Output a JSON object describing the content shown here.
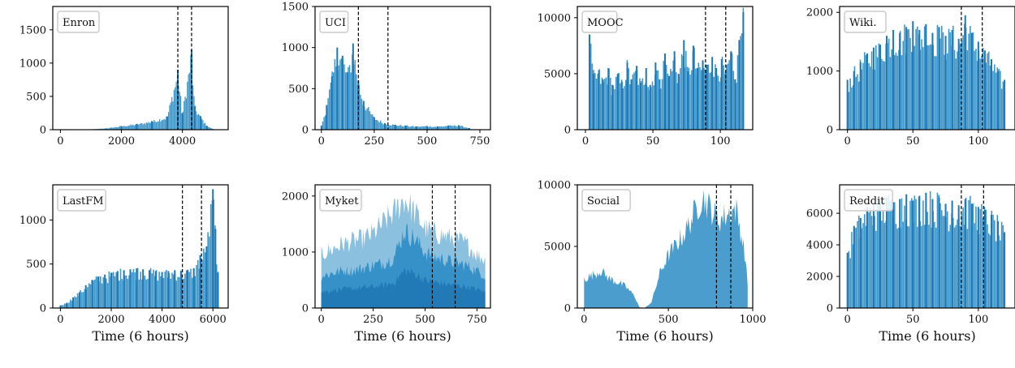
{
  "colors": {
    "bar": "#2b8cc4",
    "bar_dark": "#1f77b4",
    "bar_light": "#7fb9dc",
    "frame": "#000000",
    "legend_border": "#cccccc",
    "split_line": "#000000"
  },
  "chart_data": [
    {
      "type": "bar",
      "title": "",
      "legend_label": "Enron",
      "legend_placement": "top-left",
      "xlabel": "",
      "ylabel": "",
      "xlim": [
        -250,
        5500
      ],
      "ylim": [
        0,
        1850
      ],
      "xticks": [
        0,
        2000,
        4000
      ],
      "yticks": [
        0,
        500,
        1000,
        1500
      ],
      "split_lines": [
        3850,
        4300
      ],
      "grid": false,
      "series": [
        {
          "x": [
            1000,
            1500,
            2000,
            2500,
            3000,
            3500,
            3850,
            4000,
            4300,
            4400,
            4600,
            4800,
            5000
          ],
          "values": [
            5,
            20,
            55,
            85,
            130,
            200,
            900,
            240,
            1200,
            350,
            200,
            60,
            10
          ]
        }
      ]
    },
    {
      "type": "bar",
      "title": "",
      "legend_label": "UCI",
      "legend_placement": "top-left",
      "xlabel": "",
      "ylabel": "",
      "xlim": [
        -30,
        800
      ],
      "ylim": [
        0,
        1500
      ],
      "xticks": [
        0,
        250,
        500,
        750
      ],
      "yticks": [
        0,
        500,
        1000,
        1500
      ],
      "split_lines": [
        175,
        315
      ],
      "grid": false,
      "series": [
        {
          "x": [
            0,
            25,
            50,
            75,
            100,
            125,
            150,
            175,
            200,
            250,
            300,
            350,
            400,
            450,
            500,
            550,
            600,
            650,
            700
          ],
          "values": [
            50,
            300,
            650,
            1000,
            900,
            700,
            1050,
            600,
            350,
            150,
            80,
            60,
            50,
            40,
            45,
            40,
            50,
            55,
            20
          ]
        }
      ]
    },
    {
      "type": "bar",
      "title": "",
      "legend_label": "MOOC",
      "legend_placement": "top-left",
      "xlabel": "",
      "ylabel": "",
      "xlim": [
        -6,
        124
      ],
      "ylim": [
        0,
        11000
      ],
      "xticks": [
        0,
        50,
        100
      ],
      "yticks": [
        0,
        5000,
        10000
      ],
      "split_lines": [
        89,
        104
      ],
      "grid": false,
      "series": [
        {
          "x": [
            3,
            6,
            10,
            13,
            17,
            20,
            24,
            27,
            31,
            34,
            38,
            41,
            45,
            48,
            52,
            55,
            59,
            62,
            66,
            69,
            73,
            76,
            80,
            83,
            87,
            90,
            94,
            97,
            101,
            104,
            108,
            111,
            114,
            117
          ],
          "values": [
            8500,
            5000,
            5300,
            4500,
            5500,
            4000,
            5000,
            4300,
            6000,
            4500,
            5700,
            4200,
            5500,
            4000,
            6000,
            4500,
            6800,
            4800,
            7000,
            5000,
            8000,
            5200,
            7500,
            5500,
            6200,
            5800,
            6500,
            5500,
            6300,
            5200,
            7000,
            4500,
            8000,
            10500
          ]
        }
      ]
    },
    {
      "type": "bar",
      "title": "",
      "legend_label": "Wiki.",
      "legend_placement": "top-left",
      "xlabel": "",
      "ylabel": "",
      "xlim": [
        -6,
        128
      ],
      "ylim": [
        0,
        2100
      ],
      "xticks": [
        0,
        50,
        100
      ],
      "yticks": [
        0,
        1000,
        2000
      ],
      "split_lines": [
        87,
        103
      ],
      "grid": false,
      "series": [
        {
          "x": [
            0,
            5,
            10,
            15,
            20,
            25,
            30,
            35,
            40,
            45,
            50,
            55,
            60,
            65,
            70,
            75,
            80,
            85,
            90,
            95,
            100,
            105,
            110,
            115,
            120
          ],
          "values": [
            850,
            1000,
            1150,
            1300,
            1400,
            1450,
            1600,
            1700,
            1650,
            1750,
            1850,
            1700,
            1800,
            1650,
            1750,
            1600,
            1700,
            1550,
            1950,
            1650,
            1500,
            1350,
            1200,
            1000,
            850
          ]
        }
      ]
    },
    {
      "type": "bar",
      "title": "",
      "legend_label": "LastFM",
      "legend_placement": "top-left",
      "xlabel": "Time (6 hours)",
      "ylabel": "",
      "xlim": [
        -300,
        6600
      ],
      "ylim": [
        0,
        1400
      ],
      "xticks": [
        0,
        2000,
        4000,
        6000
      ],
      "yticks": [
        0,
        500,
        1000
      ],
      "split_lines": [
        4800,
        5550
      ],
      "grid": false,
      "series": [
        {
          "x": [
            0,
            250,
            500,
            750,
            1000,
            1250,
            1500,
            1750,
            2000,
            2250,
            2500,
            2750,
            3000,
            3250,
            3500,
            3750,
            4000,
            4250,
            4500,
            4750,
            5000,
            5250,
            5500,
            5750,
            6000,
            6100,
            6200
          ],
          "values": [
            30,
            60,
            120,
            180,
            260,
            320,
            360,
            380,
            400,
            420,
            430,
            440,
            450,
            440,
            430,
            420,
            410,
            420,
            430,
            420,
            430,
            450,
            600,
            700,
            1350,
            900,
            400
          ]
        }
      ]
    },
    {
      "type": "area",
      "title": "",
      "legend_label": "Myket",
      "legend_placement": "top-left",
      "xlabel": "Time (6 hours)",
      "ylabel": "",
      "xlim": [
        -30,
        815
      ],
      "ylim": [
        0,
        2200
      ],
      "xticks": [
        0,
        250,
        500,
        750
      ],
      "yticks": [
        0,
        1000,
        2000
      ],
      "split_lines": [
        535,
        645
      ],
      "grid": false,
      "series": [
        {
          "x": [
            0,
            50,
            100,
            150,
            200,
            250,
            300,
            350,
            400,
            450,
            500,
            550,
            600,
            650,
            700,
            750,
            790
          ],
          "values": [
            1000,
            1100,
            1200,
            1250,
            1300,
            1400,
            1600,
            1800,
            2050,
            1800,
            1500,
            1400,
            1350,
            1300,
            1200,
            1000,
            900
          ]
        },
        {
          "x": [
            0,
            50,
            100,
            150,
            200,
            250,
            300,
            350,
            400,
            450,
            500,
            550,
            600,
            650,
            700,
            750,
            790
          ],
          "values": [
            600,
            650,
            700,
            700,
            750,
            800,
            850,
            950,
            1450,
            1300,
            1050,
            950,
            900,
            850,
            800,
            700,
            600
          ]
        },
        {
          "x": [
            0,
            50,
            100,
            150,
            200,
            250,
            300,
            350,
            400,
            450,
            500,
            550,
            600,
            650,
            700,
            750,
            790
          ],
          "values": [
            300,
            330,
            350,
            360,
            380,
            400,
            420,
            470,
            700,
            650,
            520,
            480,
            450,
            430,
            400,
            350,
            300
          ]
        }
      ]
    },
    {
      "type": "area",
      "title": "",
      "legend_label": "Social",
      "legend_placement": "top-left",
      "xlabel": "Time (6 hours)",
      "ylabel": "",
      "xlim": [
        -40,
        1000
      ],
      "ylim": [
        0,
        10000
      ],
      "xticks": [
        0,
        500,
        1000
      ],
      "yticks": [
        0,
        5000,
        10000
      ],
      "split_lines": [
        785,
        870
      ],
      "grid": false,
      "series": [
        {
          "x": [
            0,
            50,
            100,
            150,
            200,
            250,
            300,
            330,
            360,
            400,
            450,
            500,
            550,
            600,
            650,
            700,
            750,
            800,
            850,
            900,
            950,
            970
          ],
          "values": [
            2500,
            2800,
            3200,
            2500,
            2200,
            1800,
            1000,
            0,
            0,
            500,
            3000,
            4500,
            5500,
            6500,
            8000,
            9500,
            8500,
            7500,
            8000,
            8500,
            5000,
            2000
          ]
        }
      ]
    },
    {
      "type": "bar",
      "title": "",
      "legend_label": "Reddit",
      "legend_placement": "top-left",
      "xlabel": "Time (6 hours)",
      "ylabel": "",
      "xlim": [
        -6,
        128
      ],
      "ylim": [
        0,
        7800
      ],
      "xticks": [
        0,
        50,
        100
      ],
      "yticks": [
        0,
        2000,
        4000,
        6000
      ],
      "split_lines": [
        87,
        104
      ],
      "grid": false,
      "series": [
        {
          "x": [
            0,
            5,
            10,
            15,
            20,
            25,
            30,
            35,
            40,
            45,
            50,
            55,
            60,
            65,
            70,
            75,
            80,
            85,
            90,
            95,
            100,
            105,
            110,
            115,
            120
          ],
          "values": [
            3500,
            5200,
            5700,
            6400,
            6600,
            6800,
            7000,
            6700,
            6900,
            7200,
            6800,
            7100,
            7300,
            6900,
            7000,
            6600,
            6800,
            6500,
            6900,
            6600,
            6400,
            6200,
            5900,
            5500,
            4800
          ]
        }
      ]
    }
  ]
}
